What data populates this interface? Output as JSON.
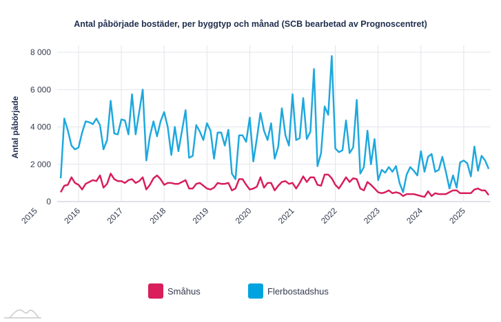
{
  "chart_data": {
    "type": "line",
    "title": "Antal påbörjade bostäder, per byggtyp och månad (SCB bearbetad av Prognoscentret)",
    "xlabel": "",
    "ylabel": "Antal påbörjade",
    "ylim": [
      0,
      8000
    ],
    "yticks": [
      0,
      2000,
      4000,
      6000,
      8000
    ],
    "ytick_labels": [
      "0",
      "2 000",
      "4 000",
      "6 000",
      "8 000"
    ],
    "xtick_labels": [
      "2015",
      "2016",
      "2017",
      "2018",
      "2019",
      "2020",
      "2021",
      "2022",
      "2023",
      "2024",
      "2025"
    ],
    "x_start": "2015-08",
    "x_step": "month",
    "grid": true,
    "legend_position": "bottom",
    "series": [
      {
        "name": "Småhus",
        "color": "#d81e5b",
        "values": [
          500,
          850,
          900,
          1300,
          1000,
          900,
          650,
          950,
          1050,
          1150,
          1100,
          1400,
          750,
          950,
          1500,
          1200,
          1100,
          1100,
          1000,
          1150,
          1200,
          1000,
          1100,
          1300,
          650,
          900,
          1250,
          1400,
          1200,
          900,
          1000,
          1000,
          950,
          950,
          1050,
          1150,
          700,
          700,
          950,
          1000,
          850,
          700,
          650,
          750,
          1000,
          950,
          950,
          1000,
          600,
          700,
          1200,
          1200,
          900,
          650,
          700,
          800,
          1300,
          750,
          1000,
          1000,
          600,
          850,
          1050,
          1100,
          950,
          1000,
          700,
          1000,
          1350,
          1050,
          1300,
          1300,
          900,
          850,
          1450,
          1450,
          1250,
          900,
          700,
          1000,
          1300,
          1050,
          1250,
          1200,
          700,
          600,
          1050,
          900,
          700,
          500,
          450,
          500,
          600,
          450,
          500,
          450,
          300,
          400,
          400,
          400,
          350,
          300,
          250,
          550,
          300,
          450,
          400,
          400,
          400,
          500,
          600,
          600,
          450,
          450,
          450,
          450,
          650,
          700,
          600,
          600,
          350
        ]
      },
      {
        "name": "Flerbostadshus",
        "color": "#1ea8de",
        "values": [
          1250,
          4450,
          3800,
          3000,
          2800,
          2900,
          3700,
          4300,
          4250,
          4150,
          4450,
          4100,
          2800,
          3300,
          5400,
          3650,
          3600,
          4400,
          4350,
          3600,
          5750,
          3600,
          4800,
          6000,
          2200,
          3500,
          4300,
          3500,
          4300,
          4800,
          4000,
          2500,
          4000,
          2700,
          3800,
          4900,
          2350,
          2450,
          4100,
          3750,
          3300,
          4200,
          3800,
          2300,
          3700,
          3700,
          3000,
          3850,
          1500,
          1200,
          3550,
          3550,
          3200,
          4500,
          2150,
          3400,
          4750,
          3800,
          3300,
          4200,
          2300,
          2950,
          5000,
          3550,
          3000,
          5750,
          3300,
          3400,
          5550,
          3350,
          3750,
          7100,
          1900,
          2600,
          5100,
          4650,
          7800,
          2850,
          2650,
          2750,
          4350,
          2600,
          2900,
          5450,
          1500,
          1850,
          3800,
          2000,
          3350,
          1150,
          1700,
          1550,
          1850,
          1600,
          1900,
          1000,
          500,
          1450,
          1850,
          1650,
          1400,
          2700,
          1600,
          2400,
          2550,
          1600,
          1700,
          2400,
          1600,
          700,
          1400,
          750,
          2100,
          2200,
          2050,
          1350,
          2950,
          1650,
          2450,
          2200,
          1750
        ]
      }
    ]
  },
  "legend": {
    "items": [
      {
        "label": "Småhus",
        "color": "#d81e5b"
      },
      {
        "label": "Flerbostadshus",
        "color": "#00a3e0"
      }
    ]
  },
  "logo": {
    "icon": "mountain-logo-icon"
  }
}
